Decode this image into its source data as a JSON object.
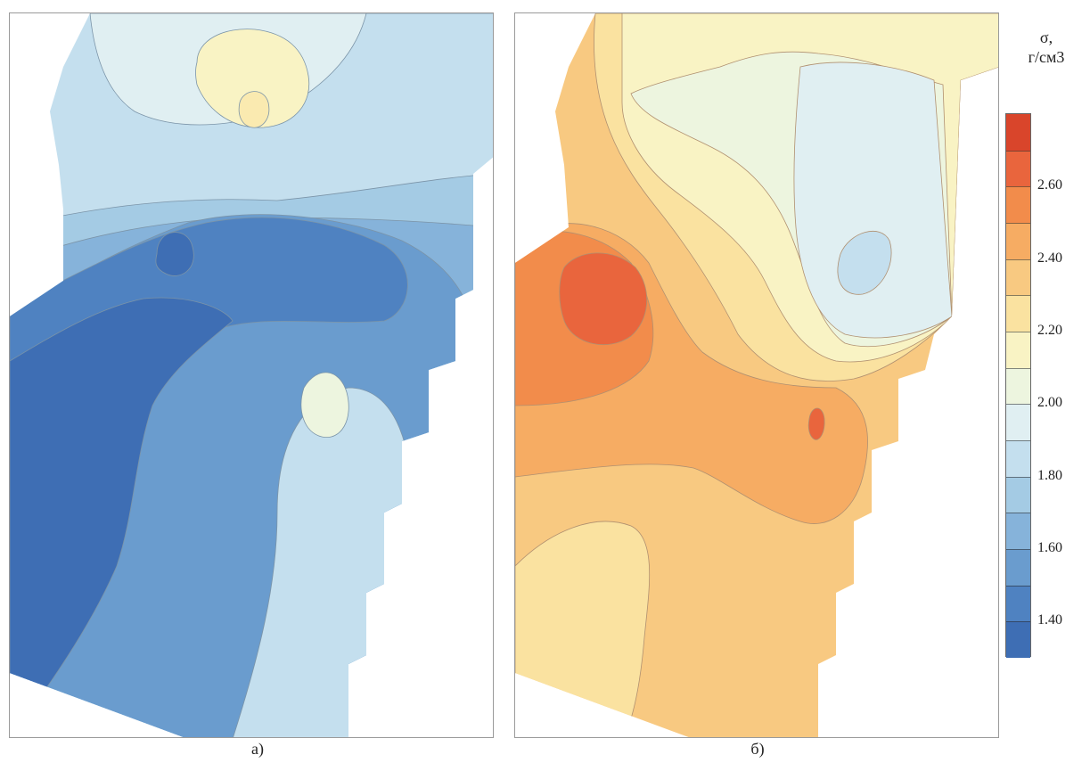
{
  "chart_data": {
    "type": "heatmap",
    "legend_title_line1": "σ,",
    "legend_title_line2": "г/см3",
    "colorbar": {
      "range": [
        1.3,
        2.8
      ],
      "step": 0.1,
      "tick_labels": [
        "2.60",
        "2.40",
        "2.20",
        "2.00",
        "1.80",
        "1.60",
        "1.40"
      ],
      "tick_values": [
        2.6,
        2.4,
        2.2,
        2.0,
        1.8,
        1.6,
        1.4
      ],
      "colors": [
        "#3e6eb4",
        "#4f82c1",
        "#6a9cce",
        "#86b3da",
        "#a4cbe4",
        "#c4dfee",
        "#e0eff2",
        "#edf5df",
        "#f9f3c4",
        "#fae2a0",
        "#f8c981",
        "#f6ac63",
        "#f28c4b",
        "#e9653d",
        "#d9452b"
      ]
    },
    "panels": [
      {
        "caption": "а)",
        "palette": "blue"
      },
      {
        "caption": "б)",
        "palette": "orange"
      }
    ]
  }
}
